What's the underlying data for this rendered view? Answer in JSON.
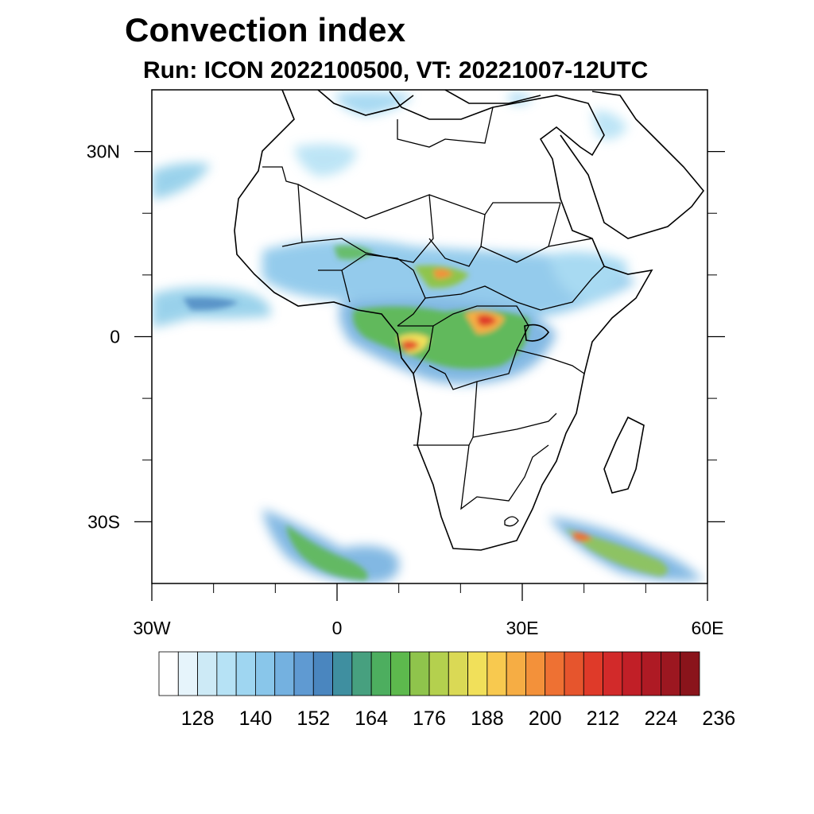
{
  "title": "Convection index",
  "subtitle": "Run: ICON 2022100500,  VT: 20221007-12UTC",
  "map": {
    "projection": "cylindrical equidistant",
    "lon_range": [
      -30,
      60
    ],
    "lat_range": [
      -40,
      40
    ],
    "lon_ticks": [
      {
        "value": -30,
        "label": "30W"
      },
      {
        "value": 0,
        "label": "0"
      },
      {
        "value": 30,
        "label": "30E"
      },
      {
        "value": 60,
        "label": "60E"
      }
    ],
    "lat_ticks": [
      {
        "value": 30,
        "label": "30N"
      },
      {
        "value": 0,
        "label": "0"
      },
      {
        "value": -30,
        "label": "30S"
      }
    ],
    "minor_lon_ticks": [
      -20,
      -10,
      10,
      20,
      40,
      50
    ],
    "minor_lat_ticks": [
      20,
      10,
      -10,
      -20
    ]
  },
  "colorbar": {
    "levels": [
      128,
      140,
      152,
      164,
      176,
      188,
      200,
      212,
      224,
      236
    ],
    "colors": [
      "#ffffff",
      "#e6f4fb",
      "#cdeaf6",
      "#b6e2f5",
      "#9fd6f1",
      "#89c6ea",
      "#74b1e0",
      "#5f9ad2",
      "#4a86bf",
      "#3f8fa0",
      "#47a07f",
      "#4dae5f",
      "#5db94d",
      "#8fc44c",
      "#b4d04e",
      "#dad955",
      "#f1e05a",
      "#f8c94f",
      "#f6ad44",
      "#f3913a",
      "#ee7133",
      "#e6552d",
      "#df3a29",
      "#d22a2a",
      "#c11f27",
      "#ae1a24",
      "#9c1720",
      "#8a141b"
    ],
    "label_values": [
      "128",
      "140",
      "152",
      "164",
      "176",
      "188",
      "200",
      "212",
      "224",
      "236"
    ]
  }
}
